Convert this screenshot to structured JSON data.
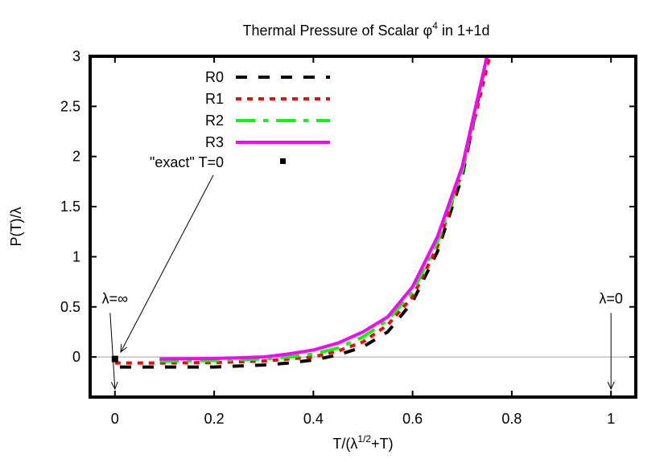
{
  "chart_data": {
    "type": "line",
    "title": "Thermal Pressure of Scalar φ⁴ in 1+1d",
    "title_main": "Thermal Pressure of Scalar φ",
    "title_sup": "4",
    "title_tail": " in 1+1d",
    "xlabel_pre": "T/(λ",
    "xlabel_sup": "1/2",
    "xlabel_post": "+T)",
    "ylabel": "P(T)/λ",
    "xlim": [
      -0.05,
      1.05
    ],
    "ylim": [
      -0.4,
      3
    ],
    "xticks": [
      0,
      0.2,
      0.4,
      0.6,
      0.8,
      1
    ],
    "xtick_labels": [
      "0",
      "0.2",
      "0.4",
      "0.6",
      "0.8",
      "1"
    ],
    "yticks": [
      0,
      0.5,
      1,
      1.5,
      2,
      2.5,
      3
    ],
    "ytick_labels": [
      "0",
      "0.5",
      "1",
      "1.5",
      "2",
      "2.5",
      "3"
    ],
    "legend_position": "top-left",
    "series": [
      {
        "name": "R0",
        "color": "#000000",
        "dash": "14,14",
        "x": [
          0.01,
          0.1,
          0.2,
          0.3,
          0.35,
          0.4,
          0.45,
          0.5,
          0.55,
          0.6,
          0.65,
          0.7,
          0.75
        ],
        "y": [
          -0.1,
          -0.1,
          -0.1,
          -0.08,
          -0.06,
          -0.03,
          0.02,
          0.1,
          0.25,
          0.55,
          1.05,
          1.8,
          3.0
        ]
      },
      {
        "name": "R1",
        "color": "#ff0000",
        "dash": "7,7",
        "x": [
          0.0,
          0.1,
          0.2,
          0.3,
          0.35,
          0.4,
          0.45,
          0.5,
          0.55,
          0.6,
          0.65,
          0.7,
          0.755
        ],
        "y": [
          -0.06,
          -0.06,
          -0.055,
          -0.04,
          -0.02,
          0.0,
          0.06,
          0.15,
          0.32,
          0.6,
          1.1,
          1.85,
          3.0
        ]
      },
      {
        "name": "R2",
        "color": "#00ff00",
        "dash": "24,10,6,10",
        "x": [
          0.09,
          0.2,
          0.3,
          0.35,
          0.4,
          0.45,
          0.5,
          0.55,
          0.6,
          0.65,
          0.7,
          0.75
        ],
        "y": [
          -0.04,
          -0.035,
          -0.02,
          0.0,
          0.03,
          0.09,
          0.2,
          0.37,
          0.65,
          1.15,
          1.85,
          3.0
        ]
      },
      {
        "name": "R3",
        "color": "#ff00ff",
        "dash": "",
        "x": [
          0.09,
          0.2,
          0.3,
          0.35,
          0.4,
          0.45,
          0.5,
          0.55,
          0.6,
          0.65,
          0.7,
          0.75
        ],
        "y": [
          -0.02,
          -0.015,
          0.0,
          0.03,
          0.07,
          0.14,
          0.25,
          0.4,
          0.7,
          1.2,
          1.9,
          3.0
        ]
      }
    ],
    "points": [
      {
        "name": "\"exact\" T=0",
        "x": 0,
        "y": -0.02,
        "color": "#000000"
      }
    ],
    "annotations": [
      {
        "text": "λ=∞",
        "x": 0,
        "y": 0.6
      },
      {
        "text": "λ=0",
        "x": 1,
        "y": 0.6
      }
    ],
    "zero_line": true
  }
}
